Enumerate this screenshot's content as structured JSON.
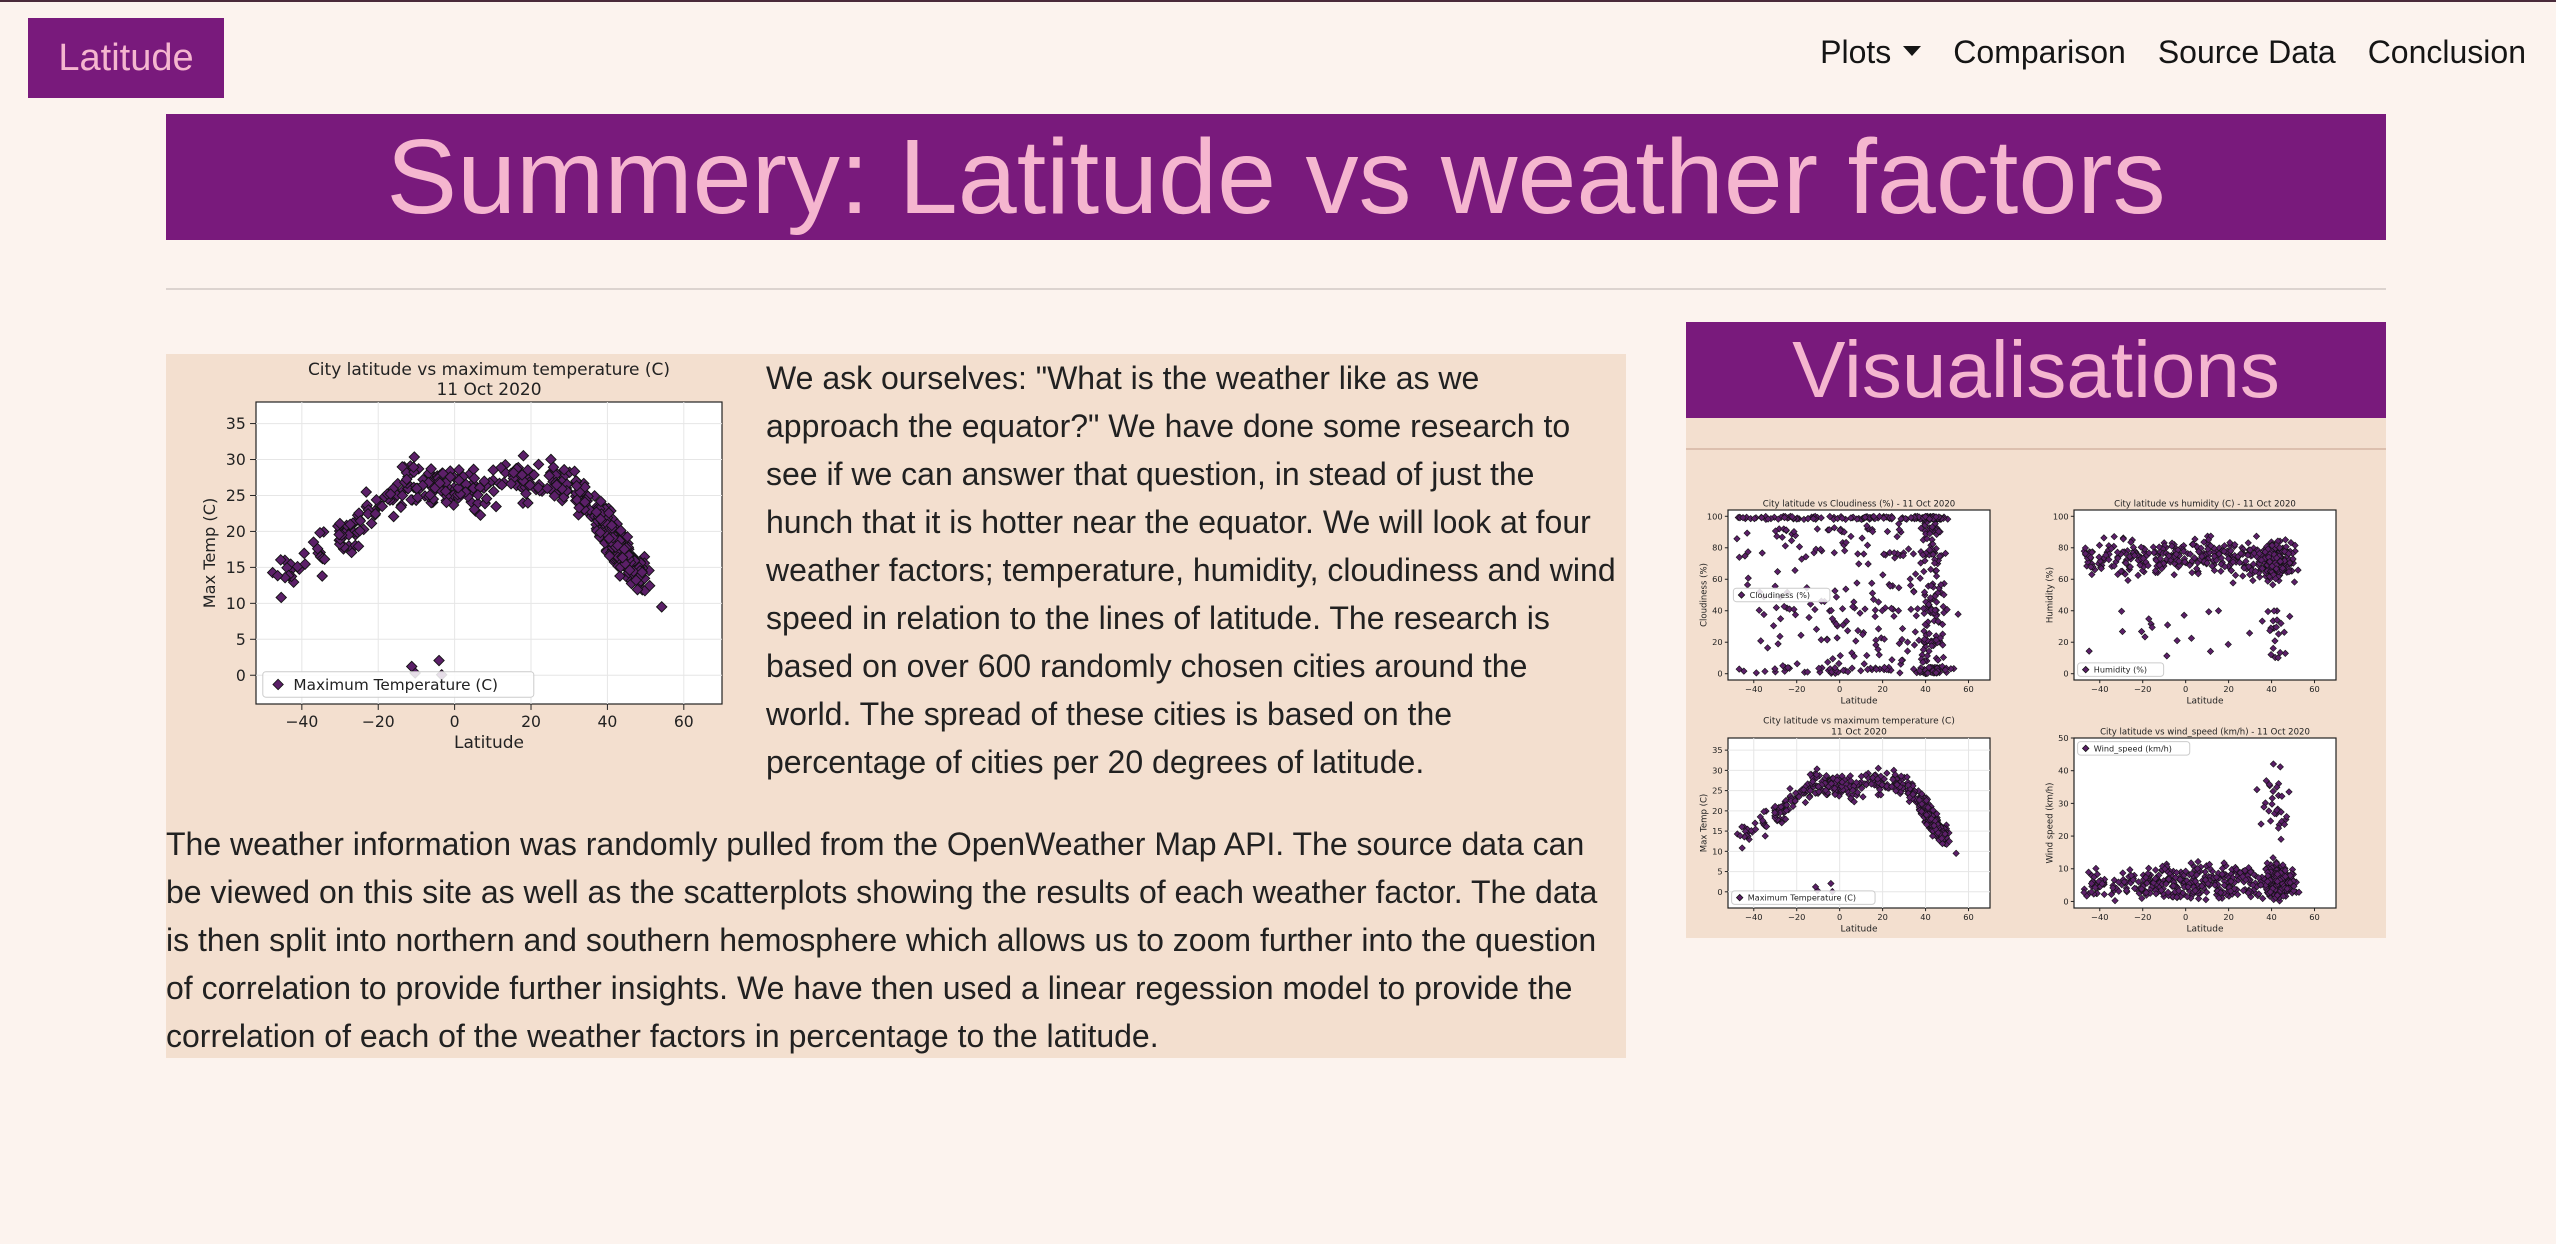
{
  "nav": {
    "brand": "Latitude",
    "items": [
      {
        "label": "Plots",
        "dropdown": true
      },
      {
        "label": "Comparison"
      },
      {
        "label": "Source Data"
      },
      {
        "label": "Conclusion"
      }
    ]
  },
  "banner": {
    "title": "Summery: Latitude vs weather factors"
  },
  "main": {
    "para1": "We ask ourselves: \"What is the weather like as we approach the equator?\" We have done some research to see if we can answer that question, in stead of just the hunch that it is hotter near the equator. We will look at four weather factors; temperature, humidity, cloudiness and wind speed in relation to the lines of latitude. The research is based on over 600 randomly chosen cities around the world. The spread of these cities is based on the percentage of cities per 20 degrees of latitude.",
    "para2": "The weather information was randomly pulled from the OpenWeather Map API. The source data can be viewed on this site as well as the scatterplots showing the results of each weather factor. The data is then split into northern and southern hemosphere which allows us to zoom further into the question of correlation to provide further insights. We have then used a linear regession model to provide the correlation of each of the weather factors in percentage to the latitude."
  },
  "side": {
    "title": "Visualisations"
  },
  "colors": {
    "accent": "#791a7c",
    "accent_text": "#f5b6cf",
    "page_bg": "#fcf3ee",
    "card_bg": "#f3dfcf",
    "point": "#5b1f68"
  },
  "chart_data": [
    {
      "id": "temp-large",
      "type": "scatter",
      "title": "City latitude vs maximum temperature (C)",
      "subtitle": "11 Oct 2020",
      "xlabel": "Latitude",
      "ylabel": "Max Temp (C)",
      "xlim": [
        -52,
        70
      ],
      "ylim": [
        -4,
        38
      ],
      "xticks": [
        -40,
        -20,
        0,
        20,
        40,
        60
      ],
      "yticks": [
        0,
        5,
        10,
        15,
        20,
        25,
        30,
        35
      ],
      "legend": "Maximum Temperature (C)",
      "legend_loc": "lower-left",
      "grid": true
    },
    {
      "id": "cloud",
      "type": "scatter",
      "title": "City latitude vs Cloudiness (%) - 11 Oct 2020",
      "xlabel": "Latitude",
      "ylabel": "Cloudiness (%)",
      "xlim": [
        -52,
        70
      ],
      "ylim": [
        -4,
        104
      ],
      "xticks": [
        -40,
        -20,
        0,
        20,
        40,
        60
      ],
      "yticks": [
        0,
        20,
        40,
        60,
        80,
        100
      ],
      "legend": "Cloudiness (%)",
      "legend_loc": "center-left",
      "grid": false
    },
    {
      "id": "humidity",
      "type": "scatter",
      "title": "City latitude vs humidity (C) - 11 Oct 2020",
      "xlabel": "Latitude",
      "ylabel": "Humidity (%)",
      "xlim": [
        -52,
        70
      ],
      "ylim": [
        -4,
        104
      ],
      "xticks": [
        -40,
        -20,
        0,
        20,
        40,
        60
      ],
      "yticks": [
        0,
        20,
        40,
        60,
        80,
        100
      ],
      "legend": "Humidity (%)",
      "legend_loc": "lower-left",
      "grid": false
    },
    {
      "id": "temp-small",
      "type": "scatter",
      "title": "City latitude vs maximum temperature (C)",
      "subtitle": "11 Oct 2020",
      "xlabel": "Latitude",
      "ylabel": "Max Temp (C)",
      "xlim": [
        -52,
        70
      ],
      "ylim": [
        -4,
        38
      ],
      "xticks": [
        -40,
        -20,
        0,
        20,
        40,
        60
      ],
      "yticks": [
        0,
        5,
        10,
        15,
        20,
        25,
        30,
        35
      ],
      "legend": "Maximum Temperature (C)",
      "legend_loc": "lower-left",
      "grid": true
    },
    {
      "id": "wind",
      "type": "scatter",
      "title": "City latitude vs wind_speed (km/h) - 11 Oct 2020",
      "xlabel": "Latitude",
      "ylabel": "Wind speed (km/h)",
      "xlim": [
        -52,
        70
      ],
      "ylim": [
        -2,
        50
      ],
      "xticks": [
        -40,
        -20,
        0,
        20,
        40,
        60
      ],
      "yticks": [
        0,
        10,
        20,
        30,
        40,
        50
      ],
      "legend": "Wind_speed (km/h)",
      "legend_loc": "top-left",
      "grid": false
    }
  ]
}
